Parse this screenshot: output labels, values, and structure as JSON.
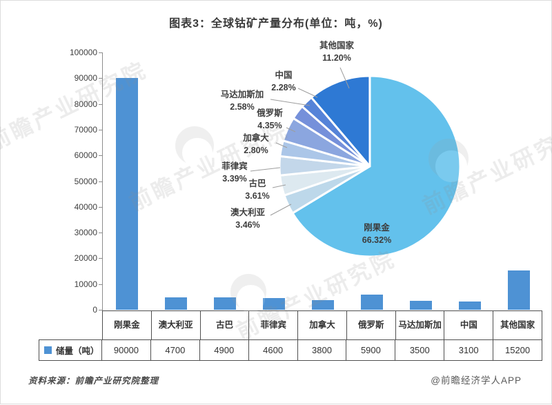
{
  "title": "图表3：全球钴矿产量分布(单位：吨，%)",
  "footer": {
    "source_note": "资料来源：前瞻产业研究院整理",
    "credit": "@前瞻经济学人APP"
  },
  "watermark": {
    "text": "前瞻产业研究院"
  },
  "chart_data": [
    {
      "type": "bar",
      "title": "图表3：全球钴矿产量分布(单位：吨，%)",
      "categories": [
        "刚果金",
        "澳大利亚",
        "古巴",
        "菲律宾",
        "加拿大",
        "俄罗斯",
        "马达加斯加",
        "中国",
        "其他国家"
      ],
      "series": [
        {
          "name": "储量（吨）",
          "values": [
            90000,
            4700,
            4900,
            4600,
            3800,
            5900,
            3500,
            3100,
            15200
          ]
        }
      ],
      "ylabel": "",
      "ylim": [
        0,
        100000
      ],
      "ytick_step": 10000,
      "y_ticks": [
        "100000",
        "90000",
        "80000",
        "70000",
        "60000",
        "50000",
        "40000",
        "30000",
        "20000",
        "10000",
        "0"
      ],
      "grid": false,
      "bar_color": "#4E92D4",
      "legend_position": "table-row-left"
    },
    {
      "type": "pie",
      "order": "clockwise-from-12-oclock",
      "slices": [
        {
          "label": "刚果金",
          "value": 66.32,
          "pct_label": "66.32%",
          "color": "#63C1EC"
        },
        {
          "label": "澳大利亚",
          "value": 3.46,
          "pct_label": "3.46%",
          "color": "#BDD8EA"
        },
        {
          "label": "古巴",
          "value": 3.61,
          "pct_label": "3.61%",
          "color": "#DDE9F0"
        },
        {
          "label": "菲律宾",
          "value": 3.39,
          "pct_label": "3.39%",
          "color": "#C3D7EA"
        },
        {
          "label": "加拿大",
          "value": 2.8,
          "pct_label": "2.80%",
          "color": "#ABC6E8"
        },
        {
          "label": "俄罗斯",
          "value": 4.35,
          "pct_label": "4.35%",
          "color": "#8BA6DF"
        },
        {
          "label": "马达加斯加",
          "value": 2.58,
          "pct_label": "2.58%",
          "color": "#7590DA"
        },
        {
          "label": "中国",
          "value": 2.28,
          "pct_label": "2.28%",
          "color": "#5583D8"
        },
        {
          "label": "其他国家",
          "value": 11.2,
          "pct_label": "11.20%",
          "color": "#2E79D4"
        }
      ]
    }
  ]
}
